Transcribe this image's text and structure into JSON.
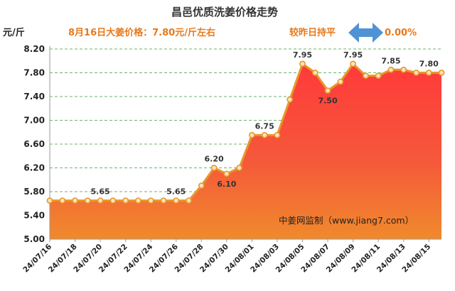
{
  "header": {
    "title": "昌邑优质洗姜价格走势",
    "ylabel": "元/斤",
    "price_note": "8月16日大姜价格：7.80元/斤左右",
    "compare_label": "较昨日持平",
    "compare_value": "0.00%",
    "compare_icon": "double-arrow-icon"
  },
  "colors": {
    "area_top": "#ff3a3a",
    "area_bottom": "#f08a2c",
    "line": "#e8962a",
    "accent_text": "#e8781a",
    "arrow": "#4f93d6",
    "grid": "#6db36d"
  },
  "watermark": "中姜网监制（www.jiang7.com）",
  "chart_data": {
    "type": "area",
    "title": "昌邑优质洗姜价格走势",
    "ylabel": "元/斤",
    "xlabel": "",
    "ylim": [
      5.0,
      8.2
    ],
    "yticks": [
      "5.00",
      "5.40",
      "5.80",
      "6.20",
      "6.60",
      "7.00",
      "7.40",
      "7.80",
      "8.20"
    ],
    "grid": true,
    "x": [
      "24/07/16",
      "24/07/17",
      "24/07/18",
      "24/07/19",
      "24/07/20",
      "24/07/21",
      "24/07/22",
      "24/07/23",
      "24/07/24",
      "24/07/25",
      "24/07/26",
      "24/07/27",
      "24/07/28",
      "24/07/29",
      "24/07/30",
      "24/07/31",
      "24/08/01",
      "24/08/02",
      "24/08/03",
      "24/08/04",
      "24/08/05",
      "24/08/06",
      "24/08/07",
      "24/08/08",
      "24/08/09",
      "24/08/10",
      "24/08/11",
      "24/08/12",
      "24/08/13",
      "24/08/14",
      "24/08/15",
      "24/08/16"
    ],
    "x_tick_labels": [
      "24/07/16",
      "24/07/18",
      "24/07/20",
      "24/07/22",
      "24/07/24",
      "24/07/26",
      "24/07/28",
      "24/07/30",
      "24/08/01",
      "24/08/03",
      "24/08/05",
      "24/08/07",
      "24/08/09",
      "24/08/11",
      "24/08/13",
      "24/08/15"
    ],
    "values": [
      5.65,
      5.65,
      5.65,
      5.65,
      5.65,
      5.65,
      5.65,
      5.65,
      5.65,
      5.65,
      5.65,
      5.65,
      5.9,
      6.2,
      6.1,
      6.2,
      6.75,
      6.75,
      6.75,
      7.35,
      7.95,
      7.8,
      7.5,
      7.65,
      7.95,
      7.75,
      7.75,
      7.85,
      7.85,
      7.8,
      7.8,
      7.8
    ],
    "data_labels": [
      {
        "x": "24/07/20",
        "value": "5.65",
        "position": "above"
      },
      {
        "x": "24/07/26",
        "value": "5.65",
        "position": "above"
      },
      {
        "x": "24/07/29",
        "value": "6.20",
        "position": "above"
      },
      {
        "x": "24/07/30",
        "value": "6.10",
        "position": "below"
      },
      {
        "x": "24/08/02",
        "value": "6.75",
        "position": "above"
      },
      {
        "x": "24/08/05",
        "value": "7.95",
        "position": "above"
      },
      {
        "x": "24/08/07",
        "value": "7.50",
        "position": "below"
      },
      {
        "x": "24/08/09",
        "value": "7.95",
        "position": "above"
      },
      {
        "x": "24/08/12",
        "value": "7.85",
        "position": "above"
      },
      {
        "x": "24/08/15",
        "value": "7.80",
        "position": "above"
      }
    ]
  }
}
